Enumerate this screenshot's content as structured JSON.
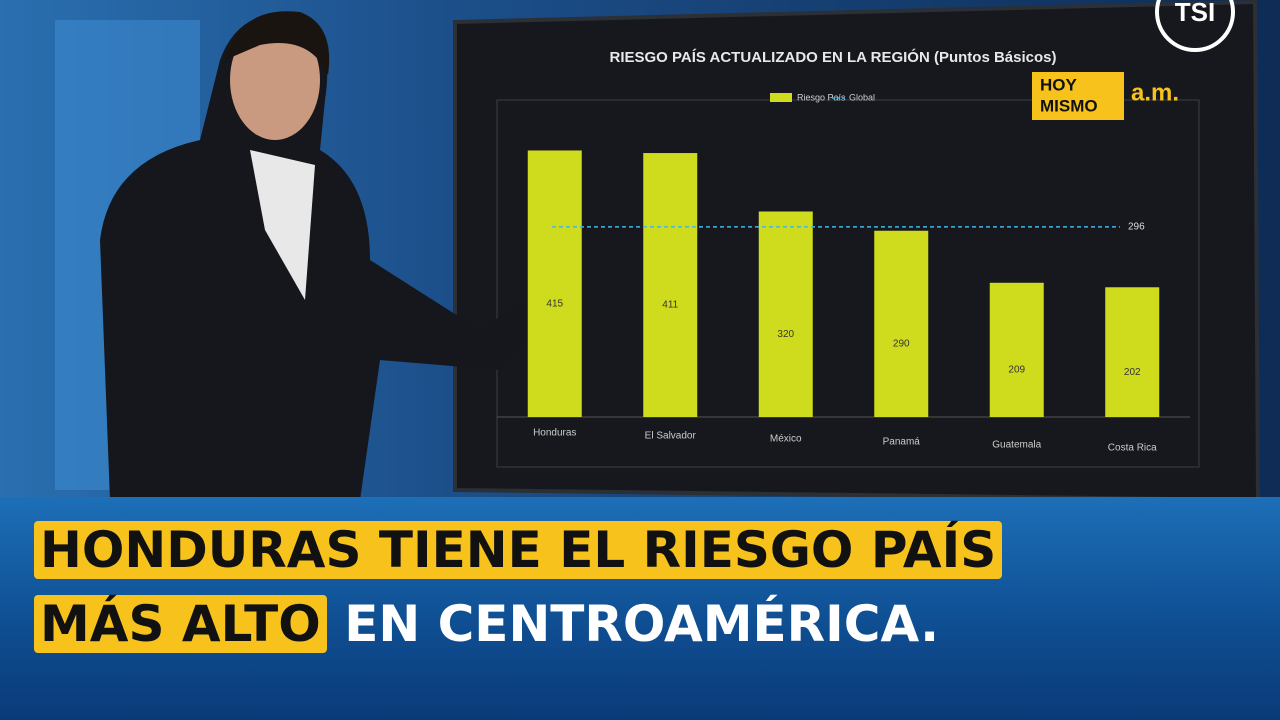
{
  "chart_data": {
    "type": "bar",
    "title": "RIESGO PAÍS ACTUALIZADO EN LA REGIÓN (Puntos Básicos)",
    "categories": [
      "Honduras",
      "El Salvador",
      "México",
      "Panamá",
      "Guatemala",
      "Costa Rica"
    ],
    "series": [
      {
        "name": "Riesgo País",
        "color": "#cfdc1e",
        "values": [
          415,
          411,
          320,
          290,
          209,
          202
        ]
      }
    ],
    "global": {
      "name": "Global",
      "value": 296,
      "color": "#3fb8e8"
    },
    "ylim": [
      0,
      450
    ]
  },
  "show_logo": {
    "line_1": "HOY",
    "line_2": "MISMO",
    "suffix": "a.m."
  },
  "channel_logo": "TSI",
  "headline": {
    "line_1": "HONDURAS TIENE EL RIESGO PAÍS",
    "line_2_highlight": "MÁS ALTO",
    "line_2_rest": "EN CENTROAMÉRICA."
  }
}
